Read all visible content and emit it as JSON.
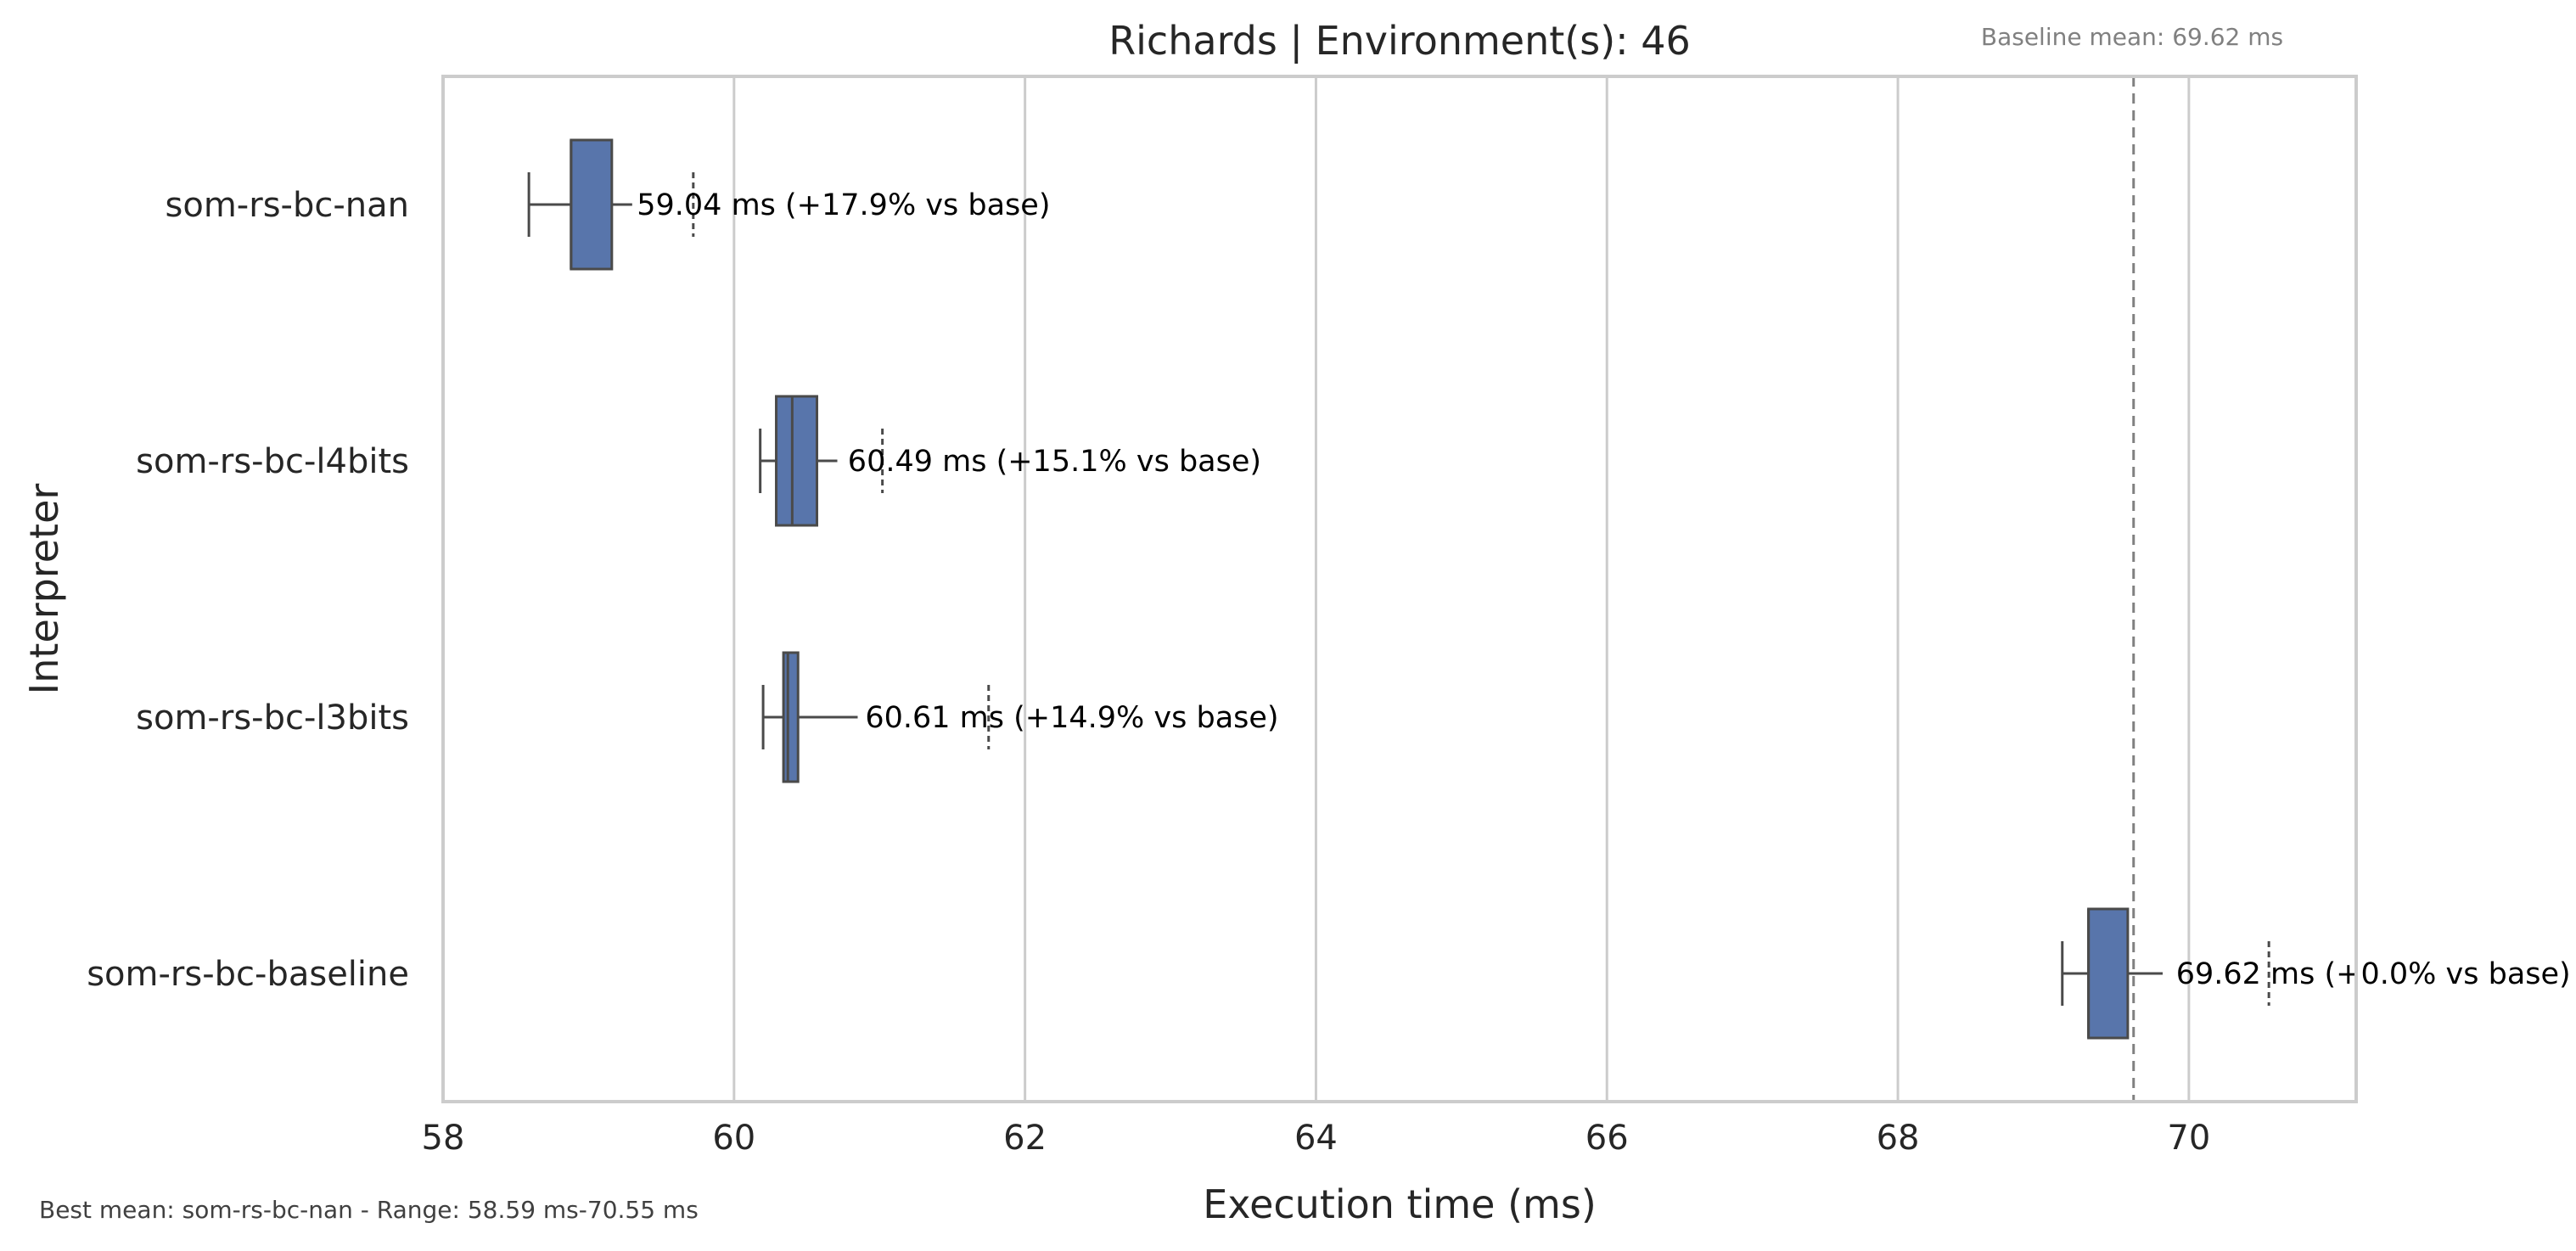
{
  "chart_data": {
    "type": "boxplot",
    "orientation": "horizontal",
    "title": "Richards | Environment(s): 46",
    "xlabel": "Execution time (ms)",
    "ylabel": "Interpreter",
    "xlim": [
      58,
      71.15
    ],
    "xticks": [
      58,
      60,
      62,
      64,
      66,
      68,
      70
    ],
    "grid": "vertical",
    "baseline_note": "Baseline mean: 69.62 ms",
    "baseline_mean": 69.62,
    "footer": "Best mean: som-rs-bc-nan - Range: 58.59 ms-70.55 ms",
    "colors": {
      "box": "#5875ab",
      "edge": "#4a4a4a",
      "grid": "#cccccc",
      "baseline_line": "#808080"
    },
    "series": [
      {
        "category": "som-rs-bc-nan",
        "whisker_low": 58.59,
        "q1": 58.88,
        "median": 58.88,
        "q3": 59.16,
        "whisker_high": 59.3,
        "flier": 59.72,
        "mean": 59.04,
        "label": "59.04 ms  (+17.9% vs base)"
      },
      {
        "category": "som-rs-bc-l4bits",
        "whisker_low": 60.18,
        "q1": 60.29,
        "median": 60.4,
        "q3": 60.57,
        "whisker_high": 60.71,
        "flier": 61.02,
        "mean": 60.49,
        "label": "60.49 ms  (+15.1% vs base)"
      },
      {
        "category": "som-rs-bc-l3bits",
        "whisker_low": 60.2,
        "q1": 60.34,
        "median": 60.37,
        "q3": 60.44,
        "whisker_high": 60.85,
        "flier": 61.75,
        "mean": 60.61,
        "label": "60.61 ms  (+14.9% vs base)"
      },
      {
        "category": "som-rs-bc-baseline",
        "whisker_low": 69.13,
        "q1": 69.31,
        "median": 69.31,
        "q3": 69.58,
        "whisker_high": 69.82,
        "flier": 70.55,
        "mean": 69.62,
        "label": "69.62 ms  (+0.0% vs base)"
      }
    ]
  }
}
